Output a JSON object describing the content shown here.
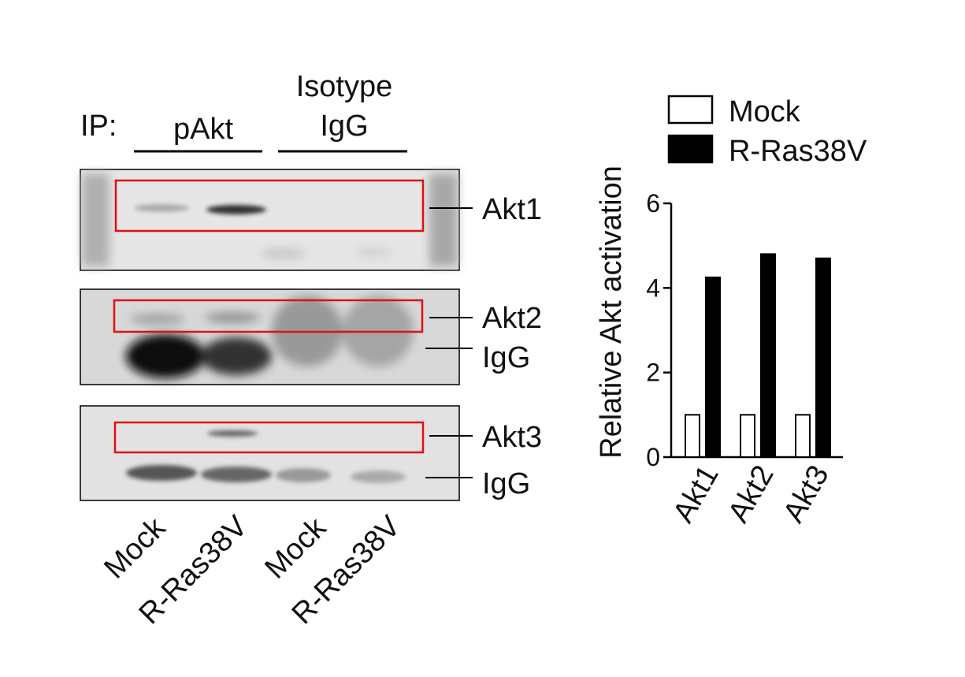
{
  "blot": {
    "ip_label": "IP:",
    "group_labels": {
      "pakt": "pAkt",
      "isotype": [
        "Isotype",
        "IgG"
      ]
    },
    "panels": [
      [
        "Akt1"
      ],
      [
        "Akt2",
        "IgG"
      ],
      [
        "Akt3",
        "IgG"
      ]
    ],
    "lanes": [
      "Mock",
      "R-Ras38V",
      "Mock",
      "R-Ras38V"
    ]
  },
  "chart_data": {
    "type": "bar",
    "y_label": "Relative Akt activation",
    "categories": [
      "Akt1",
      "Akt2",
      "Akt3"
    ],
    "series": [
      {
        "name": "Mock",
        "color": "#ffffff",
        "values": [
          1,
          1,
          1
        ]
      },
      {
        "name": "R-Ras38V",
        "color": "#000000",
        "values": [
          4.25,
          4.8,
          4.7
        ]
      }
    ],
    "ylim": [
      0,
      6
    ],
    "yticks": [
      0,
      2,
      4,
      6
    ]
  }
}
